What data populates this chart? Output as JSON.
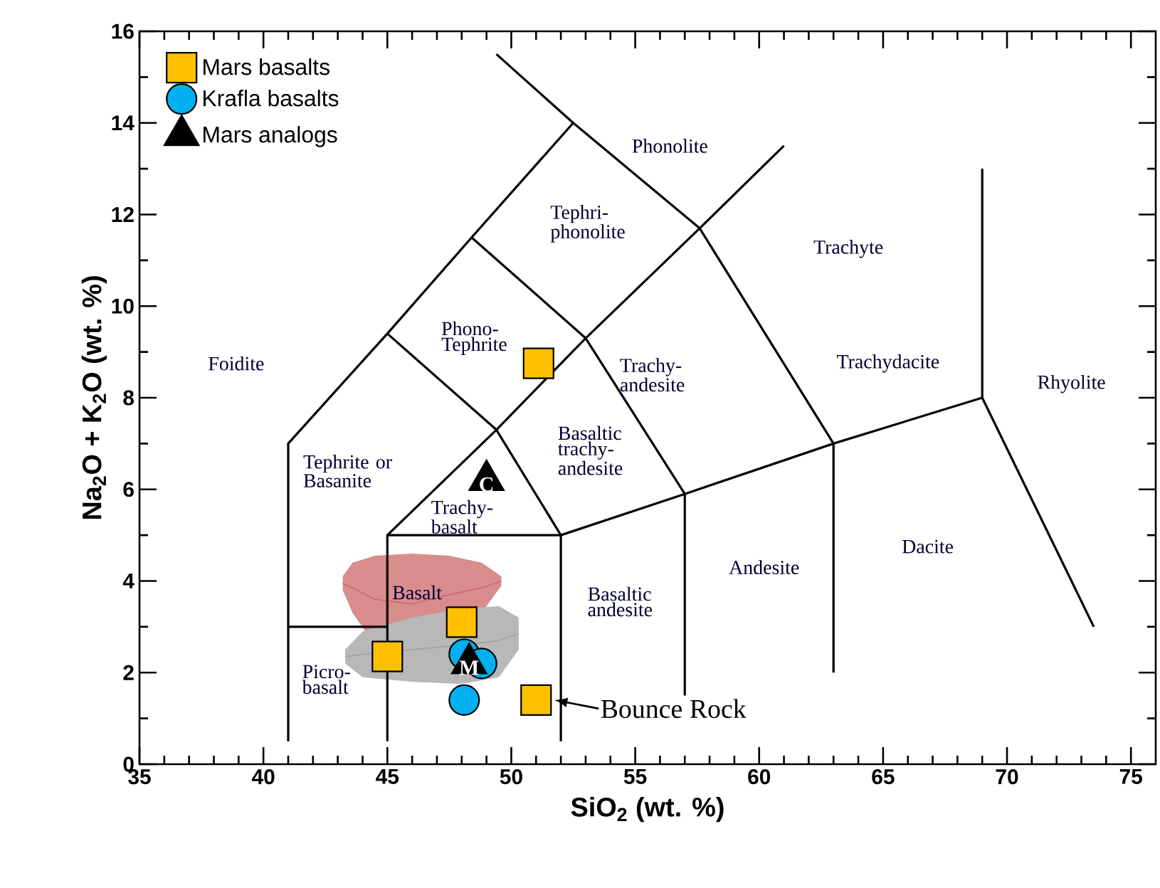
{
  "chart_data": {
    "type": "scatter",
    "xlabel": "SiO$_{2}$ (wt. %)",
    "ylabel": "Na$_{2}$O + K$_{2}$O (wt. %)",
    "xlim": [
      35,
      76
    ],
    "ylim": [
      0,
      16
    ],
    "xticks": [
      35,
      40,
      45,
      50,
      55,
      60,
      65,
      70,
      75
    ],
    "yticks": [
      0,
      2,
      4,
      6,
      8,
      10,
      12,
      14,
      16
    ],
    "legend": "top left",
    "series": [
      {
        "type": "line",
        "color": "#000000",
        "x": [
          41,
          41,
          45,
          48.4,
          52.5,
          49.4,
          null,
          52.5,
          57.6,
          63,
          null,
          48.4,
          53,
          57,
          null,
          45,
          49.4,
          53,
          57.6,
          61,
          null,
          45,
          45,
          49.4,
          52,
          52,
          null,
          45,
          52,
          null,
          41,
          45,
          null,
          52,
          57,
          63,
          69,
          69,
          null,
          57,
          57,
          null,
          63,
          63,
          null,
          69,
          73.5
        ],
        "values": [
          0.5,
          7,
          9.4,
          11.5,
          14,
          15.5,
          null,
          14,
          11.7,
          7,
          null,
          11.5,
          9.3,
          5.9,
          null,
          9.4,
          7.3,
          9.3,
          11.7,
          13.5,
          null,
          0.5,
          5,
          7.3,
          5,
          0.5,
          null,
          5,
          5,
          null,
          3,
          3,
          null,
          5,
          5.9,
          7,
          8,
          13,
          null,
          5.9,
          1.5,
          null,
          7,
          2,
          null,
          8,
          3
        ]
      },
      {
        "type": "line",
        "color": "#a0a0a0",
        "x": [
          43.3,
          44,
          46,
          48,
          49.5,
          50.3
        ],
        "values": [
          2.35,
          2.4,
          2.5,
          2.6,
          2.7,
          2.85
        ],
        "lower": [
          2.2,
          1.9,
          1.8,
          1.75,
          1.9,
          2.5
        ],
        "upper": [
          2.5,
          2.9,
          3.2,
          3.4,
          3.45,
          3.2
        ]
      },
      {
        "type": "line",
        "color": "#cc6666",
        "x": [
          43.2,
          43.6,
          44.5,
          46,
          47.5,
          48.8,
          49.6
        ],
        "values": [
          3.95,
          3.85,
          3.6,
          3.5,
          3.7,
          3.85,
          4.0
        ],
        "lower": [
          3.8,
          3.3,
          2.6,
          2.45,
          2.8,
          3.3,
          3.9
        ],
        "upper": [
          4.1,
          4.4,
          4.55,
          4.6,
          4.55,
          4.4,
          4.1
        ]
      },
      {
        "name": "Mars basalts",
        "color": "#ffc000",
        "marker": "square",
        "x": [
          51.1,
          48.0,
          45.0,
          51.0
        ],
        "values": [
          8.75,
          3.1,
          2.35,
          1.4
        ]
      },
      {
        "name": "Krafla basalts",
        "color": "#00b0f0",
        "marker": "circle",
        "x": [
          48.1,
          48.8,
          48.1
        ],
        "values": [
          2.4,
          2.2,
          1.4
        ]
      },
      {
        "name": "Mars analogs",
        "color": "#000000",
        "marker": "triangle",
        "x": [
          49.0,
          48.3
        ],
        "values": [
          6.2,
          2.2
        ],
        "value_labels": [
          "C",
          "M"
        ]
      }
    ],
    "annotations": [
      "Phonolite",
      "Tephri-phonolite",
      "Trachyte",
      "Foidite",
      "Phono-Tephrite",
      "Trachy-andesite",
      "Trachydacite",
      "Rhyolite",
      "Tephrite or Basanite",
      "Basaltic trachy-andesite",
      "Trachy-basalt",
      "Basalt",
      "Picro-basalt",
      "Basaltic andesite",
      "Andesite",
      "Dacite",
      {
        "text": "Bounce Rock",
        "x": 51.0,
        "y": 1.4
      }
    ]
  }
}
